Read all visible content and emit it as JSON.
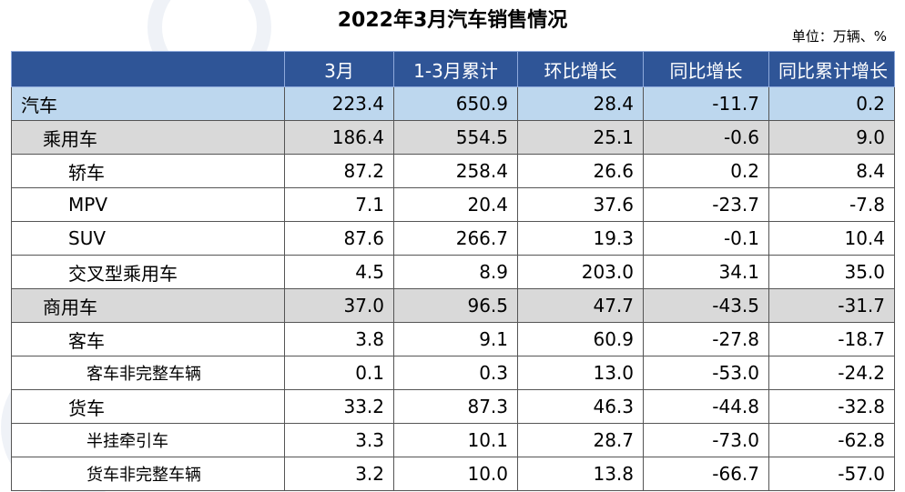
{
  "title": "2022年3月汽车销售情况",
  "unit": "单位：万辆、%",
  "headers": [
    "",
    "3月",
    "1-3月累计",
    "环比增长",
    "同比增长",
    "同比累计增长"
  ],
  "rows": [
    {
      "label": "汽车",
      "level": 0,
      "values": [
        "223.4",
        "650.9",
        "28.4",
        "-11.7",
        "0.2"
      ]
    },
    {
      "label": "乘用车",
      "level": 1,
      "values": [
        "186.4",
        "554.5",
        "25.1",
        "-0.6",
        "9.0"
      ]
    },
    {
      "label": "轿车",
      "level": 2,
      "values": [
        "87.2",
        "258.4",
        "26.6",
        "0.2",
        "8.4"
      ]
    },
    {
      "label": "MPV",
      "level": 2,
      "values": [
        "7.1",
        "20.4",
        "37.6",
        "-23.7",
        "-7.8"
      ]
    },
    {
      "label": "SUV",
      "level": 2,
      "values": [
        "87.6",
        "266.7",
        "19.3",
        "-0.1",
        "10.4"
      ]
    },
    {
      "label": "交叉型乘用车",
      "level": 2,
      "values": [
        "4.5",
        "8.9",
        "203.0",
        "34.1",
        "35.0"
      ]
    },
    {
      "label": "商用车",
      "level": 1,
      "values": [
        "37.0",
        "96.5",
        "47.7",
        "-43.5",
        "-31.7"
      ]
    },
    {
      "label": "客车",
      "level": 2,
      "values": [
        "3.8",
        "9.1",
        "60.9",
        "-27.8",
        "-18.7"
      ]
    },
    {
      "label": "客车非完整车辆",
      "level": 3,
      "values": [
        "0.1",
        "0.3",
        "13.0",
        "-53.0",
        "-24.2"
      ]
    },
    {
      "label": "货车",
      "level": 2,
      "values": [
        "33.2",
        "87.3",
        "46.3",
        "-44.8",
        "-32.8"
      ]
    },
    {
      "label": "半挂牵引车",
      "level": 3,
      "values": [
        "3.3",
        "10.1",
        "28.7",
        "-73.0",
        "-62.8"
      ]
    },
    {
      "label": "货车非完整车辆",
      "level": 3,
      "values": [
        "3.2",
        "10.0",
        "13.8",
        "-66.7",
        "-57.0"
      ]
    }
  ],
  "colors": {
    "header_bg": "#2f5597",
    "total_row_bg": "#bdd7ee",
    "subtotal_row_bg": "#d9d9d9"
  }
}
